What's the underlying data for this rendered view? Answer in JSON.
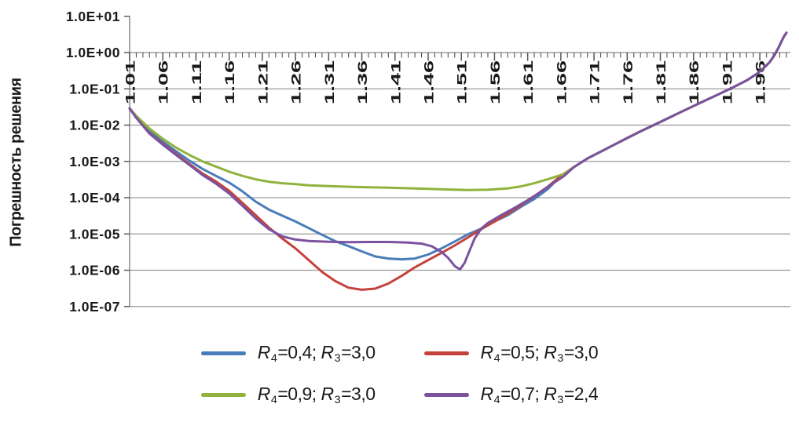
{
  "figure": {
    "background": "#ffffff"
  },
  "colors": {
    "blue": "#4a7cba",
    "red": "#c5423c",
    "green": "#8fb33c",
    "purple": "#7a52a0",
    "grid": "#9a9a9a",
    "axis": "#8a8a8a",
    "tick": "#555555",
    "text": "#1a1a1a"
  },
  "chart_data": {
    "type": "line",
    "title": "",
    "xlabel": "",
    "ylabel": "Погрешность решения",
    "x_scale": "linear",
    "y_scale": "log",
    "grid": "horizontal",
    "legend_position": "bottom",
    "x_range": [
      1.01,
      2.0
    ],
    "x_tick_step": 0.05,
    "x_minor_tick_step": 0.01,
    "x_ticks": [
      "1.01",
      "1.06",
      "1.11",
      "1.16",
      "1.21",
      "1.26",
      "1.31",
      "1.36",
      "1.41",
      "1.46",
      "1.51",
      "1.56",
      "1.61",
      "1.66",
      "1.71",
      "1.76",
      "1.81",
      "1.86",
      "1.91",
      "1.96"
    ],
    "y_tick_labels": [
      "1.0E+01",
      "1.0E+00",
      "1.0E-01",
      "1.0E-02",
      "1.0E-03",
      "1.0E-04",
      "1.0E-05",
      "1.0E-06",
      "1.0E-07"
    ],
    "y_tick_exponents": [
      1,
      0,
      -1,
      -2,
      -3,
      -4,
      -5,
      -6,
      -7
    ],
    "series": [
      {
        "key": "blue",
        "name": "R4=0,4; R3=3,0",
        "label_parts": [
          [
            "R",
            "ivar"
          ],
          [
            "4",
            "sub"
          ],
          [
            "=0,4; ",
            "plain"
          ],
          [
            "R",
            "ivar"
          ],
          [
            "3",
            "sub"
          ],
          [
            "=3,0",
            "plain"
          ]
        ],
        "color_key": "blue",
        "points": [
          [
            1.01,
            0.029
          ],
          [
            1.02,
            0.017
          ],
          [
            1.04,
            0.0068
          ],
          [
            1.06,
            0.0035
          ],
          [
            1.08,
            0.0019
          ],
          [
            1.1,
            0.00105
          ],
          [
            1.12,
            0.00062
          ],
          [
            1.14,
            0.0004
          ],
          [
            1.16,
            0.00026
          ],
          [
            1.18,
            0.00015
          ],
          [
            1.2,
            7.8e-05
          ],
          [
            1.22,
            4.7e-05
          ],
          [
            1.24,
            3.2e-05
          ],
          [
            1.26,
            2.2e-05
          ],
          [
            1.28,
            1.45e-05
          ],
          [
            1.3,
            9.5e-06
          ],
          [
            1.32,
            6.3e-06
          ],
          [
            1.34,
            4.6e-06
          ],
          [
            1.36,
            3.3e-06
          ],
          [
            1.38,
            2.4e-06
          ],
          [
            1.4,
            2.1e-06
          ],
          [
            1.42,
            2e-06
          ],
          [
            1.44,
            2.1e-06
          ],
          [
            1.46,
            2.7e-06
          ],
          [
            1.48,
            4e-06
          ],
          [
            1.5,
            6.2e-06
          ],
          [
            1.52,
            9.8e-06
          ],
          [
            1.54,
            1.4e-05
          ],
          [
            1.56,
            2.2e-05
          ],
          [
            1.58,
            3.3e-05
          ],
          [
            1.6,
            5.6e-05
          ],
          [
            1.62,
            9.2e-05
          ],
          [
            1.64,
            0.00017
          ],
          [
            1.66,
            0.0004
          ],
          [
            1.68,
            0.0007
          ],
          [
            1.7,
            0.0012
          ],
          [
            1.72,
            0.00185
          ],
          [
            1.74,
            0.00285
          ],
          [
            1.76,
            0.0044
          ],
          [
            1.78,
            0.0067
          ],
          [
            1.8,
            0.01
          ],
          [
            1.82,
            0.015
          ],
          [
            1.84,
            0.0225
          ],
          [
            1.86,
            0.0335
          ],
          [
            1.88,
            0.05
          ],
          [
            1.9,
            0.074
          ],
          [
            1.92,
            0.111
          ],
          [
            1.94,
            0.17
          ],
          [
            1.955,
            0.255
          ],
          [
            1.965,
            0.36
          ],
          [
            1.975,
            0.55
          ],
          [
            1.982,
            0.85
          ],
          [
            1.988,
            1.35
          ],
          [
            1.993,
            2.1
          ],
          [
            1.997,
            2.9
          ],
          [
            2.0,
            3.5
          ]
        ]
      },
      {
        "key": "red",
        "name": "R4=0,5; R3=3,0",
        "label_parts": [
          [
            "R",
            "ivar"
          ],
          [
            "4",
            "sub"
          ],
          [
            "=0,5; ",
            "plain"
          ],
          [
            "R",
            "ivar"
          ],
          [
            "3",
            "sub"
          ],
          [
            "=3,0",
            "plain"
          ]
        ],
        "color_key": "red",
        "points": [
          [
            1.01,
            0.029
          ],
          [
            1.02,
            0.016
          ],
          [
            1.04,
            0.006
          ],
          [
            1.06,
            0.003
          ],
          [
            1.08,
            0.0016
          ],
          [
            1.1,
            0.00085
          ],
          [
            1.12,
            0.00046
          ],
          [
            1.14,
            0.00028
          ],
          [
            1.16,
            0.000155
          ],
          [
            1.18,
            7.2e-05
          ],
          [
            1.2,
            3.3e-05
          ],
          [
            1.22,
            1.5e-05
          ],
          [
            1.24,
            7.5e-06
          ],
          [
            1.26,
            4e-06
          ],
          [
            1.28,
            1.9e-06
          ],
          [
            1.3,
            9e-07
          ],
          [
            1.32,
            5e-07
          ],
          [
            1.34,
            3.3e-07
          ],
          [
            1.36,
            2.9e-07
          ],
          [
            1.38,
            3.1e-07
          ],
          [
            1.4,
            4.3e-07
          ],
          [
            1.42,
            7e-07
          ],
          [
            1.44,
            1.2e-06
          ],
          [
            1.46,
            1.9e-06
          ],
          [
            1.48,
            3e-06
          ],
          [
            1.5,
            4.8e-06
          ],
          [
            1.52,
            8e-06
          ],
          [
            1.54,
            1.35e-05
          ],
          [
            1.56,
            2.2e-05
          ],
          [
            1.58,
            3.6e-05
          ],
          [
            1.6,
            6.2e-05
          ],
          [
            1.62,
            0.00011
          ],
          [
            1.64,
            0.0002
          ],
          [
            1.66,
            0.0004
          ],
          [
            1.68,
            0.0007
          ],
          [
            1.7,
            0.0012
          ],
          [
            1.72,
            0.00185
          ],
          [
            1.74,
            0.00285
          ],
          [
            1.76,
            0.0044
          ],
          [
            1.78,
            0.0067
          ],
          [
            1.8,
            0.01
          ],
          [
            1.82,
            0.015
          ],
          [
            1.84,
            0.0225
          ],
          [
            1.86,
            0.0335
          ],
          [
            1.88,
            0.05
          ],
          [
            1.9,
            0.074
          ],
          [
            1.92,
            0.111
          ],
          [
            1.94,
            0.17
          ],
          [
            1.955,
            0.255
          ],
          [
            1.965,
            0.36
          ],
          [
            1.975,
            0.55
          ],
          [
            1.982,
            0.85
          ],
          [
            1.988,
            1.35
          ],
          [
            1.993,
            2.1
          ],
          [
            1.997,
            2.9
          ],
          [
            2.0,
            3.5
          ]
        ]
      },
      {
        "key": "green",
        "name": "R4=0,9; R3=3,0",
        "label_parts": [
          [
            "R",
            "ivar"
          ],
          [
            "4",
            "sub"
          ],
          [
            "=0,9; ",
            "plain"
          ],
          [
            "R",
            "ivar"
          ],
          [
            "3",
            "sub"
          ],
          [
            "=3,0",
            "plain"
          ]
        ],
        "color_key": "green",
        "points": [
          [
            1.01,
            0.029
          ],
          [
            1.02,
            0.018
          ],
          [
            1.04,
            0.008
          ],
          [
            1.06,
            0.0042
          ],
          [
            1.08,
            0.0024
          ],
          [
            1.1,
            0.0015
          ],
          [
            1.12,
            0.001
          ],
          [
            1.14,
            0.00072
          ],
          [
            1.16,
            0.00052
          ],
          [
            1.18,
            0.0004
          ],
          [
            1.2,
            0.00032
          ],
          [
            1.22,
            0.000275
          ],
          [
            1.24,
            0.00025
          ],
          [
            1.26,
            0.000235
          ],
          [
            1.28,
            0.00022
          ],
          [
            1.31,
            0.000208
          ],
          [
            1.34,
            0.0002
          ],
          [
            1.37,
            0.000193
          ],
          [
            1.4,
            0.000188
          ],
          [
            1.43,
            0.000182
          ],
          [
            1.46,
            0.000175
          ],
          [
            1.49,
            0.000168
          ],
          [
            1.52,
            0.000163
          ],
          [
            1.55,
            0.000165
          ],
          [
            1.58,
            0.00018
          ],
          [
            1.6,
            0.000205
          ],
          [
            1.62,
            0.00025
          ],
          [
            1.64,
            0.00032
          ],
          [
            1.665,
            0.00045
          ],
          [
            1.68,
            0.0007
          ],
          [
            1.7,
            0.0012
          ],
          [
            1.72,
            0.00185
          ],
          [
            1.74,
            0.00285
          ],
          [
            1.76,
            0.0044
          ],
          [
            1.78,
            0.0067
          ],
          [
            1.8,
            0.01
          ],
          [
            1.82,
            0.015
          ],
          [
            1.84,
            0.0225
          ],
          [
            1.86,
            0.0335
          ],
          [
            1.88,
            0.05
          ],
          [
            1.9,
            0.074
          ],
          [
            1.92,
            0.111
          ],
          [
            1.94,
            0.17
          ],
          [
            1.955,
            0.255
          ],
          [
            1.965,
            0.36
          ],
          [
            1.975,
            0.55
          ],
          [
            1.982,
            0.85
          ],
          [
            1.988,
            1.35
          ],
          [
            1.993,
            2.1
          ],
          [
            1.997,
            2.9
          ],
          [
            2.0,
            3.5
          ]
        ]
      },
      {
        "key": "purple",
        "name": "R4=0,7; R3=2,4",
        "label_parts": [
          [
            "R",
            "ivar"
          ],
          [
            "4",
            "sub"
          ],
          [
            "=0,7; ",
            "plain"
          ],
          [
            "R",
            "ivar"
          ],
          [
            "3",
            "sub"
          ],
          [
            "=2,4",
            "plain"
          ]
        ],
        "color_key": "purple",
        "points": [
          [
            1.01,
            0.029
          ],
          [
            1.02,
            0.016
          ],
          [
            1.04,
            0.0058
          ],
          [
            1.06,
            0.0029
          ],
          [
            1.08,
            0.0015
          ],
          [
            1.1,
            0.0008
          ],
          [
            1.12,
            0.00042
          ],
          [
            1.14,
            0.000245
          ],
          [
            1.16,
            0.00013
          ],
          [
            1.18,
            6e-05
          ],
          [
            1.2,
            2.7e-05
          ],
          [
            1.22,
            1.35e-05
          ],
          [
            1.24,
            8.6e-06
          ],
          [
            1.26,
            7e-06
          ],
          [
            1.28,
            6.4e-06
          ],
          [
            1.31,
            6.1e-06
          ],
          [
            1.34,
            5.9e-06
          ],
          [
            1.37,
            6e-06
          ],
          [
            1.4,
            6e-06
          ],
          [
            1.43,
            5.8e-06
          ],
          [
            1.45,
            5.4e-06
          ],
          [
            1.465,
            4.6e-06
          ],
          [
            1.48,
            3.2e-06
          ],
          [
            1.49,
            2.2e-06
          ],
          [
            1.5,
            1.3e-06
          ],
          [
            1.508,
            1.05e-06
          ],
          [
            1.515,
            1.6e-06
          ],
          [
            1.522,
            3.3e-06
          ],
          [
            1.53,
            7.5e-06
          ],
          [
            1.54,
            1.4e-05
          ],
          [
            1.55,
            2e-05
          ],
          [
            1.57,
            3.3e-05
          ],
          [
            1.59,
            5.2e-05
          ],
          [
            1.61,
            8.5e-05
          ],
          [
            1.63,
            0.000145
          ],
          [
            1.65,
            0.00026
          ],
          [
            1.665,
            0.0004
          ],
          [
            1.68,
            0.0007
          ],
          [
            1.7,
            0.0012
          ],
          [
            1.72,
            0.00185
          ],
          [
            1.74,
            0.00285
          ],
          [
            1.76,
            0.0044
          ],
          [
            1.78,
            0.0067
          ],
          [
            1.8,
            0.01
          ],
          [
            1.82,
            0.015
          ],
          [
            1.84,
            0.0225
          ],
          [
            1.86,
            0.0335
          ],
          [
            1.88,
            0.05
          ],
          [
            1.9,
            0.074
          ],
          [
            1.92,
            0.111
          ],
          [
            1.94,
            0.17
          ],
          [
            1.955,
            0.255
          ],
          [
            1.965,
            0.36
          ],
          [
            1.975,
            0.55
          ],
          [
            1.982,
            0.85
          ],
          [
            1.988,
            1.35
          ],
          [
            1.993,
            2.1
          ],
          [
            1.997,
            2.9
          ],
          [
            2.0,
            3.5
          ]
        ]
      }
    ]
  }
}
